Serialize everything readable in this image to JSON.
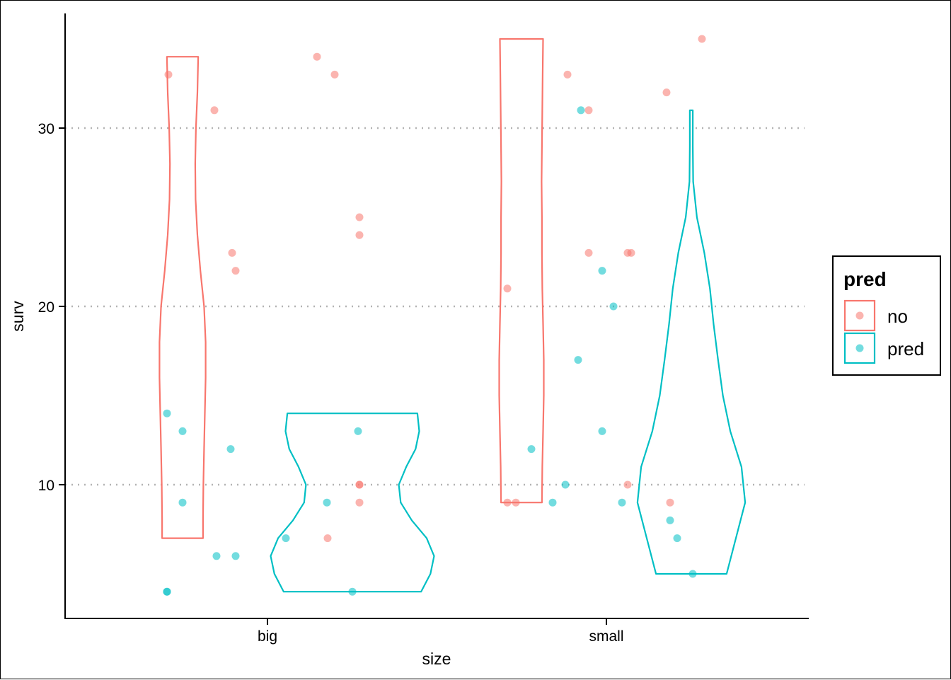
{
  "chart_data": {
    "type": "violin",
    "xlabel": "size",
    "ylabel": "surv",
    "categories": [
      "big",
      "small"
    ],
    "y_ticks": [
      10,
      20,
      30
    ],
    "ylim": [
      3.5,
      36.5
    ],
    "grid": "horizontal dotted",
    "legend": {
      "title": "pred",
      "position": "right",
      "entries": [
        {
          "label": "no",
          "color": "#F8766D"
        },
        {
          "label": "pred",
          "color": "#00BFC4"
        }
      ]
    },
    "series": [
      {
        "key": "no",
        "color": "#F8766D",
        "violins": [
          {
            "category": "big",
            "y_min": 7,
            "y_max": 34,
            "density": [
              [
                7,
                0.55
              ],
              [
                8,
                0.55
              ],
              [
                10,
                0.56
              ],
              [
                12,
                0.58
              ],
              [
                14,
                0.6
              ],
              [
                16,
                0.62
              ],
              [
                18,
                0.62
              ],
              [
                20,
                0.58
              ],
              [
                22,
                0.48
              ],
              [
                24,
                0.4
              ],
              [
                26,
                0.35
              ],
              [
                28,
                0.34
              ],
              [
                30,
                0.36
              ],
              [
                32,
                0.4
              ],
              [
                34,
                0.42
              ]
            ]
          },
          {
            "category": "small",
            "y_min": 9,
            "y_max": 35,
            "density": [
              [
                9,
                0.55
              ],
              [
                11,
                0.56
              ],
              [
                13,
                0.58
              ],
              [
                15,
                0.6
              ],
              [
                17,
                0.6
              ],
              [
                19,
                0.58
              ],
              [
                21,
                0.56
              ],
              [
                23,
                0.55
              ],
              [
                25,
                0.55
              ],
              [
                27,
                0.54
              ],
              [
                29,
                0.55
              ],
              [
                31,
                0.56
              ],
              [
                33,
                0.57
              ],
              [
                35,
                0.58
              ]
            ]
          }
        ],
        "points": [
          {
            "category": "big",
            "y": 33
          },
          {
            "category": "big",
            "y": 31
          },
          {
            "category": "big",
            "y": 34
          },
          {
            "category": "big",
            "y": 33
          },
          {
            "category": "big",
            "y": 23
          },
          {
            "category": "big",
            "y": 22
          },
          {
            "category": "big",
            "y": 25
          },
          {
            "category": "big",
            "y": 24
          },
          {
            "category": "big",
            "y": 10
          },
          {
            "category": "big",
            "y": 10
          },
          {
            "category": "big",
            "y": 9
          },
          {
            "category": "big",
            "y": 7
          },
          {
            "category": "small",
            "y": 33
          },
          {
            "category": "small",
            "y": 31
          },
          {
            "category": "small",
            "y": 21
          },
          {
            "category": "small",
            "y": 23
          },
          {
            "category": "small",
            "y": 23
          },
          {
            "category": "small",
            "y": 23
          },
          {
            "category": "small",
            "y": 32
          },
          {
            "category": "small",
            "y": 35
          },
          {
            "category": "small",
            "y": 9
          },
          {
            "category": "small",
            "y": 9
          },
          {
            "category": "small",
            "y": 10
          },
          {
            "category": "small",
            "y": 9
          }
        ]
      },
      {
        "key": "pred",
        "color": "#00BFC4",
        "violins": [
          {
            "category": "big",
            "y_min": 4,
            "y_max": 14,
            "density": [
              [
                4,
                1.85
              ],
              [
                5,
                2.1
              ],
              [
                6,
                2.2
              ],
              [
                7,
                2.0
              ],
              [
                8,
                1.6
              ],
              [
                9,
                1.3
              ],
              [
                10,
                1.25
              ],
              [
                11,
                1.45
              ],
              [
                12,
                1.7
              ],
              [
                13,
                1.8
              ],
              [
                14,
                1.75
              ]
            ]
          },
          {
            "category": "small",
            "y_min": 5,
            "y_max": 31,
            "density": [
              [
                5,
                0.95
              ],
              [
                7,
                1.2
              ],
              [
                9,
                1.45
              ],
              [
                11,
                1.35
              ],
              [
                13,
                1.05
              ],
              [
                15,
                0.85
              ],
              [
                17,
                0.72
              ],
              [
                19,
                0.6
              ],
              [
                21,
                0.5
              ],
              [
                23,
                0.35
              ],
              [
                25,
                0.15
              ],
              [
                27,
                0.05
              ],
              [
                29,
                0.04
              ],
              [
                31,
                0.04
              ]
            ]
          }
        ],
        "points": [
          {
            "category": "big",
            "y": 14
          },
          {
            "category": "big",
            "y": 13
          },
          {
            "category": "big",
            "y": 12
          },
          {
            "category": "big",
            "y": 9
          },
          {
            "category": "big",
            "y": 6
          },
          {
            "category": "big",
            "y": 6
          },
          {
            "category": "big",
            "y": 4
          },
          {
            "category": "big",
            "y": 4
          },
          {
            "category": "big",
            "y": 7
          },
          {
            "category": "big",
            "y": 9
          },
          {
            "category": "big",
            "y": 13
          },
          {
            "category": "big",
            "y": 4
          },
          {
            "category": "small",
            "y": 31
          },
          {
            "category": "small",
            "y": 12
          },
          {
            "category": "small",
            "y": 17
          },
          {
            "category": "small",
            "y": 20
          },
          {
            "category": "small",
            "y": 13
          },
          {
            "category": "small",
            "y": 10
          },
          {
            "category": "small",
            "y": 8
          },
          {
            "category": "small",
            "y": 7
          },
          {
            "category": "small",
            "y": 22
          },
          {
            "category": "small",
            "y": 9
          },
          {
            "category": "small",
            "y": 9
          },
          {
            "category": "small",
            "y": 5
          }
        ]
      }
    ]
  }
}
